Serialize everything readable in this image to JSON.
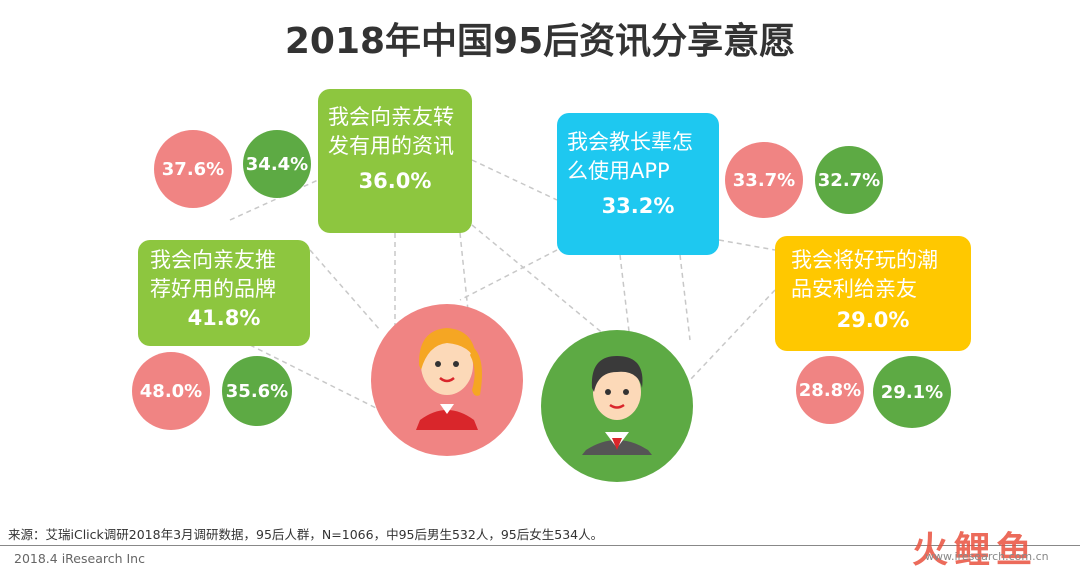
{
  "title": "2018年中国95后资讯分享意愿",
  "chart_data": {
    "type": "bubble-network",
    "title": "2018年中国95后资讯分享意愿",
    "series": [
      {
        "name": "女",
        "color": "#f08483"
      },
      {
        "name": "男",
        "color": "#5daa44"
      }
    ],
    "items": [
      {
        "label_line1": "我会向亲友转",
        "label_line2": "发有用的资讯",
        "total": "36.0%",
        "female": "37.6%",
        "male": "34.4%",
        "color": "#8dc63f"
      },
      {
        "label_line1": "我会向亲友推",
        "label_line2": "荐好用的品牌",
        "total": "41.8%",
        "female": "48.0%",
        "male": "35.6%",
        "color": "#8dc63f"
      },
      {
        "label_line1": "我会教长辈怎",
        "label_line2": "么使用APP",
        "total": "33.2%",
        "female": "33.7%",
        "male": "32.7%",
        "color": "#1ec8f0"
      },
      {
        "label_line1": "我会将好玩的潮",
        "label_line2": "品安利给亲友",
        "total": "29.0%",
        "female": "28.8%",
        "male": "29.1%",
        "color": "#ffc800"
      }
    ]
  },
  "footer": {
    "source": "来源：艾瑞iClick调研2018年3月调研数据，95后人群，N=1066，中95后男生532人，95后女生534人。",
    "date": "2018.4 iResearch Inc",
    "watermark_brand": "火鲤鱼",
    "watermark_url": "www.iresearch.com.cn"
  }
}
